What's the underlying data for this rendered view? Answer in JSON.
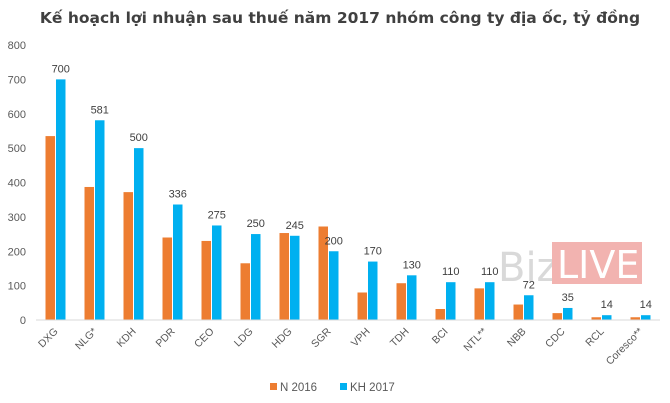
{
  "chart_data": {
    "type": "bar",
    "title": "Kế hoạch lợi nhuận sau thuế năm 2017 nhóm công ty địa ốc, tỷ đồng",
    "categories": [
      "DXG",
      "NLG*",
      "KDH",
      "PDR",
      "CEO",
      "LDG",
      "HDG",
      "SGR",
      "VPH",
      "TDH",
      "BCI",
      "NTL**",
      "NBB",
      "CDC",
      "RCL",
      "Coresco**"
    ],
    "series": [
      {
        "name": "N 2016",
        "color": "#ed7d31",
        "values": [
          535,
          387,
          372,
          240,
          230,
          165,
          253,
          272,
          80,
          107,
          32,
          92,
          45,
          20,
          8,
          8
        ]
      },
      {
        "name": "KH 2017",
        "color": "#00b0f0",
        "values": [
          700,
          581,
          500,
          336,
          275,
          250,
          245,
          200,
          170,
          130,
          110,
          110,
          72,
          35,
          14,
          14
        ],
        "labels": [
          "700",
          "581",
          "500",
          "336",
          "275",
          "250",
          "245",
          "200",
          "170",
          "130",
          "110",
          "110",
          "72",
          "35",
          "14",
          "14"
        ]
      }
    ],
    "ylim": [
      0,
      800
    ],
    "yticks": [
      0,
      100,
      200,
      300,
      400,
      500,
      600,
      700,
      800
    ],
    "grid": false,
    "legend": "bottom"
  },
  "watermark": {
    "part1": "Biz",
    "part2": "LIVE",
    "color": "#f2b3b0"
  }
}
